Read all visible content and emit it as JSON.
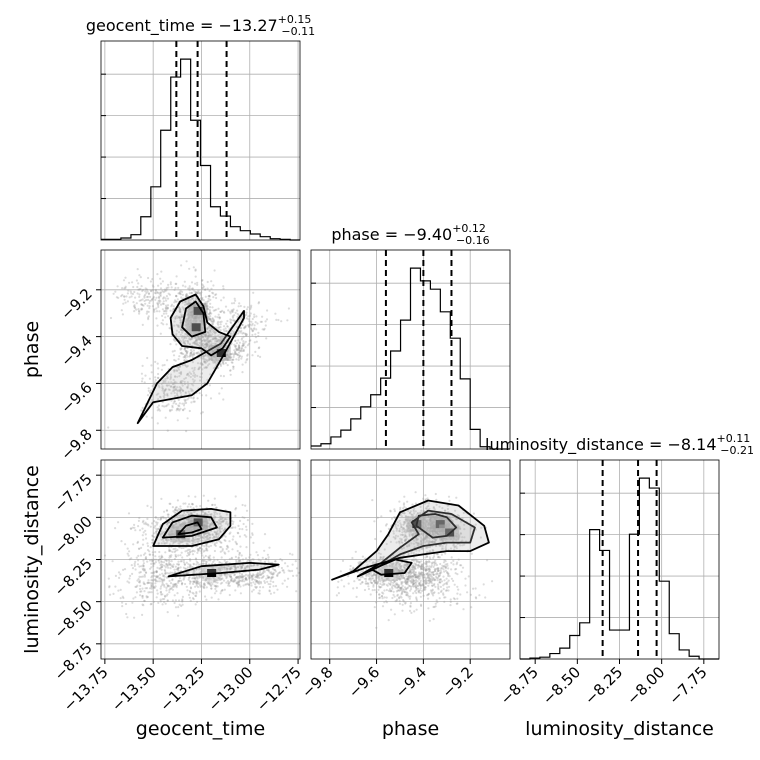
{
  "chart_data": {
    "type": "corner",
    "parameters": [
      "geocent_time",
      "phase",
      "luminosity_distance"
    ],
    "axis_labels": {
      "geocent_time": "geocent_time",
      "phase": "phase",
      "luminosity_distance": "luminosity_distance"
    },
    "ranges": {
      "geocent_time": [
        -13.77,
        -12.74
      ],
      "phase": [
        -9.88,
        -9.03
      ],
      "luminosity_distance": [
        -8.84,
        -7.66
      ]
    },
    "ticks": {
      "geocent_time": [
        -13.75,
        -13.5,
        -13.25,
        -13.0,
        -12.75
      ],
      "phase": [
        -9.8,
        -9.6,
        -9.4,
        -9.2
      ],
      "luminosity_distance": [
        -8.75,
        -8.5,
        -8.25,
        -8.0,
        -7.75
      ]
    },
    "tick_labels": {
      "geocent_time": [
        "−13.75",
        "−13.50",
        "−13.25",
        "−13.00",
        "−12.75"
      ],
      "phase": [
        "−9.8",
        "−9.6",
        "−9.4",
        "−9.2"
      ],
      "luminosity_distance": [
        "−8.75",
        "−8.50",
        "−8.25",
        "−8.00",
        "−7.75"
      ]
    },
    "titles": [
      {
        "param": "geocent_time",
        "label": "geocent_time = −13.27",
        "sup": "+0.15",
        "sub": "−0.11"
      },
      {
        "param": "phase",
        "label": "phase = −9.40",
        "sup": "+0.12",
        "sub": "−0.16"
      },
      {
        "param": "luminosity_distance",
        "label": "luminosity_distance = −8.14",
        "sup": "+0.11",
        "sub": "−0.21"
      }
    ],
    "quantiles": {
      "geocent_time": [
        -13.38,
        -13.27,
        -13.12
      ],
      "phase": [
        -9.56,
        -9.4,
        -9.28
      ],
      "luminosity_distance": [
        -8.35,
        -8.14,
        -8.03
      ]
    },
    "histograms": {
      "geocent_time": {
        "edges": [
          -13.77,
          -13.718,
          -13.667,
          -13.615,
          -13.564,
          -13.512,
          -13.461,
          -13.409,
          -13.358,
          -13.306,
          -13.255,
          -13.203,
          -13.152,
          -13.1,
          -13.049,
          -12.997,
          -12.946,
          -12.894,
          -12.843,
          -12.791,
          -12.74
        ],
        "counts": [
          1,
          1,
          3,
          8,
          35,
          80,
          165,
          245,
          272,
          180,
          112,
          50,
          36,
          20,
          14,
          9,
          5,
          2,
          1,
          0
        ]
      },
      "phase": {
        "edges": [
          -9.88,
          -9.8375,
          -9.795,
          -9.7525,
          -9.71,
          -9.6675,
          -9.625,
          -9.5825,
          -9.54,
          -9.4975,
          -9.455,
          -9.4125,
          -9.37,
          -9.3275,
          -9.285,
          -9.2425,
          -9.2,
          -9.1575,
          -9.115,
          -9.0725,
          -9.03
        ],
        "counts": [
          4,
          7,
          16,
          25,
          40,
          56,
          72,
          94,
          130,
          171,
          240,
          223,
          212,
          182,
          147,
          93,
          26,
          3,
          0,
          0
        ]
      },
      "luminosity_distance": {
        "edges": [
          -8.84,
          -8.781,
          -8.722,
          -8.663,
          -8.604,
          -8.545,
          -8.486,
          -8.427,
          -8.368,
          -8.309,
          -8.25,
          -8.191,
          -8.132,
          -8.073,
          -8.014,
          -7.955,
          -7.896,
          -7.837,
          -7.778,
          -7.719,
          -7.66
        ],
        "counts": [
          0,
          1,
          2,
          6,
          12,
          26,
          40,
          143,
          120,
          32,
          32,
          138,
          200,
          189,
          86,
          28,
          10,
          3,
          0,
          0
        ]
      }
    },
    "scatter": {
      "phase_vs_geocent_time": {
        "components": [
          {
            "mx": -13.28,
            "my": -9.32,
            "sx": 0.07,
            "sy": 0.08,
            "n": 700
          },
          {
            "mx": -13.18,
            "my": -9.46,
            "sx": 0.08,
            "sy": 0.04,
            "n": 500
          },
          {
            "mx": -13.38,
            "my": -9.62,
            "sx": 0.09,
            "sy": 0.06,
            "n": 300
          },
          {
            "mx": -13.05,
            "my": -9.35,
            "sx": 0.08,
            "sy": 0.05,
            "n": 200
          },
          {
            "mx": -13.52,
            "my": -9.24,
            "sx": 0.1,
            "sy": 0.05,
            "n": 200
          }
        ],
        "density_peaks": [
          {
            "x": -13.27,
            "y": -9.29,
            "w": 0.4
          },
          {
            "x": -13.28,
            "y": -9.36,
            "w": 0.3
          },
          {
            "x": -13.15,
            "y": -9.47,
            "w": 0.35
          }
        ]
      },
      "luminosity_distance_vs_geocent_time": {
        "components": [
          {
            "mx": -13.3,
            "my": -8.07,
            "sx": 0.12,
            "sy": 0.07,
            "n": 900
          },
          {
            "mx": -13.1,
            "my": -8.33,
            "sx": 0.16,
            "sy": 0.05,
            "n": 700
          },
          {
            "mx": -13.45,
            "my": -8.35,
            "sx": 0.12,
            "sy": 0.09,
            "n": 400
          }
        ],
        "density_peaks": [
          {
            "x": -13.27,
            "y": -8.03,
            "w": 0.45
          },
          {
            "x": -13.36,
            "y": -8.1,
            "w": 0.3
          },
          {
            "x": -13.2,
            "y": -8.33,
            "w": 0.2
          }
        ]
      },
      "luminosity_distance_vs_phase": {
        "components": [
          {
            "mx": -9.38,
            "my": -8.07,
            "sx": 0.08,
            "sy": 0.07,
            "n": 900
          },
          {
            "mx": -9.5,
            "my": -8.33,
            "sx": 0.1,
            "sy": 0.05,
            "n": 700
          },
          {
            "mx": -9.45,
            "my": -8.4,
            "sx": 0.12,
            "sy": 0.08,
            "n": 400
          }
        ],
        "density_peaks": [
          {
            "x": -9.33,
            "y": -8.04,
            "w": 0.45
          },
          {
            "x": -9.29,
            "y": -8.09,
            "w": 0.35
          },
          {
            "x": -9.43,
            "y": -8.04,
            "w": 0.3
          },
          {
            "x": -9.55,
            "y": -8.33,
            "w": 0.2
          }
        ]
      }
    },
    "contours": {
      "phase_vs_geocent_time": [
        [
          [
            -13.58,
            -9.77
          ],
          [
            -13.48,
            -9.6
          ],
          [
            -13.4,
            -9.53
          ],
          [
            -13.3,
            -9.5
          ],
          [
            -13.15,
            -9.43
          ],
          [
            -13.03,
            -9.29
          ],
          [
            -13.03,
            -9.32
          ],
          [
            -13.15,
            -9.5
          ],
          [
            -13.22,
            -9.6
          ],
          [
            -13.3,
            -9.65
          ],
          [
            -13.5,
            -9.68
          ],
          [
            -13.58,
            -9.77
          ]
        ],
        [
          [
            -13.28,
            -9.22
          ],
          [
            -13.36,
            -9.25
          ],
          [
            -13.41,
            -9.32
          ],
          [
            -13.4,
            -9.39
          ],
          [
            -13.35,
            -9.44
          ],
          [
            -13.25,
            -9.45
          ],
          [
            -13.2,
            -9.48
          ],
          [
            -13.14,
            -9.45
          ],
          [
            -13.1,
            -9.4
          ],
          [
            -13.16,
            -9.38
          ],
          [
            -13.22,
            -9.34
          ],
          [
            -13.24,
            -9.27
          ],
          [
            -13.28,
            -9.22
          ]
        ],
        [
          [
            -13.28,
            -9.25
          ],
          [
            -13.33,
            -9.28
          ],
          [
            -13.35,
            -9.36
          ],
          [
            -13.3,
            -9.4
          ],
          [
            -13.23,
            -9.38
          ],
          [
            -13.24,
            -9.3
          ],
          [
            -13.28,
            -9.25
          ]
        ]
      ],
      "luminosity_distance_vs_geocent_time": [
        [
          [
            -13.5,
            -8.17
          ],
          [
            -13.45,
            -8.04
          ],
          [
            -13.35,
            -7.96
          ],
          [
            -13.2,
            -7.95
          ],
          [
            -13.1,
            -7.97
          ],
          [
            -13.1,
            -8.05
          ],
          [
            -13.16,
            -8.13
          ],
          [
            -13.3,
            -8.17
          ],
          [
            -13.5,
            -8.17
          ]
        ],
        [
          [
            -13.45,
            -8.12
          ],
          [
            -13.4,
            -8.03
          ],
          [
            -13.3,
            -7.99
          ],
          [
            -13.2,
            -8.0
          ],
          [
            -13.17,
            -8.06
          ],
          [
            -13.3,
            -8.11
          ],
          [
            -13.45,
            -8.12
          ]
        ],
        [
          [
            -13.42,
            -8.35
          ],
          [
            -13.25,
            -8.29
          ],
          [
            -13.0,
            -8.27
          ],
          [
            -12.85,
            -8.28
          ],
          [
            -12.95,
            -8.31
          ],
          [
            -13.15,
            -8.33
          ],
          [
            -13.42,
            -8.35
          ]
        ],
        [
          [
            -13.37,
            -8.1
          ],
          [
            -13.33,
            -8.05
          ],
          [
            -13.27,
            -8.03
          ],
          [
            -13.25,
            -8.07
          ],
          [
            -13.3,
            -8.09
          ],
          [
            -13.37,
            -8.1
          ]
        ]
      ],
      "luminosity_distance_vs_phase": [
        [
          [
            -9.68,
            -8.35
          ],
          [
            -9.6,
            -8.3
          ],
          [
            -9.5,
            -8.22
          ],
          [
            -9.4,
            -8.17
          ],
          [
            -9.3,
            -8.15
          ],
          [
            -9.2,
            -8.15
          ],
          [
            -9.18,
            -8.06
          ],
          [
            -9.28,
            -7.98
          ],
          [
            -9.38,
            -7.96
          ],
          [
            -9.45,
            -8.03
          ],
          [
            -9.42,
            -8.1
          ],
          [
            -9.5,
            -8.18
          ],
          [
            -9.58,
            -8.27
          ],
          [
            -9.68,
            -8.35
          ]
        ],
        [
          [
            -9.43,
            -8.05
          ],
          [
            -9.42,
            -7.99
          ],
          [
            -9.35,
            -7.98
          ],
          [
            -9.3,
            -8.0
          ],
          [
            -9.26,
            -8.06
          ],
          [
            -9.3,
            -8.11
          ],
          [
            -9.36,
            -8.12
          ],
          [
            -9.43,
            -8.05
          ]
        ],
        [
          [
            -9.62,
            -8.31
          ],
          [
            -9.52,
            -8.25
          ],
          [
            -9.45,
            -8.27
          ],
          [
            -9.48,
            -8.33
          ],
          [
            -9.58,
            -8.34
          ],
          [
            -9.62,
            -8.31
          ]
        ],
        [
          [
            -9.79,
            -8.37
          ],
          [
            -9.65,
            -8.3
          ],
          [
            -9.5,
            -8.24
          ],
          [
            -9.4,
            -8.22
          ],
          [
            -9.3,
            -8.2
          ],
          [
            -9.2,
            -8.2
          ],
          [
            -9.12,
            -8.15
          ],
          [
            -9.14,
            -8.05
          ],
          [
            -9.25,
            -7.93
          ],
          [
            -9.38,
            -7.9
          ],
          [
            -9.5,
            -7.97
          ],
          [
            -9.55,
            -8.1
          ],
          [
            -9.6,
            -8.2
          ],
          [
            -9.7,
            -8.32
          ],
          [
            -9.79,
            -8.37
          ]
        ]
      ]
    }
  }
}
